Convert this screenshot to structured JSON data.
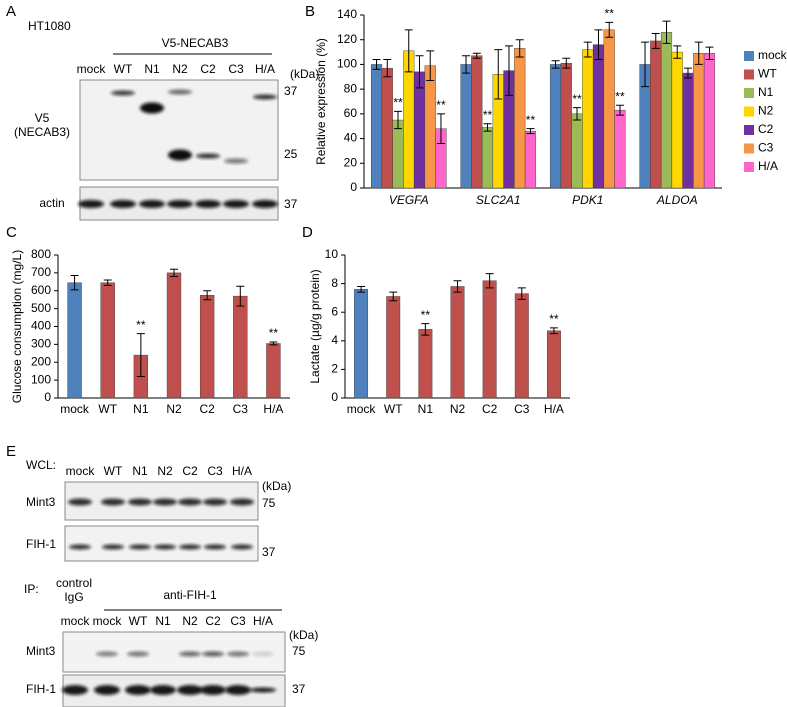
{
  "chart_data": [
    {
      "type": "bar",
      "panel": "B",
      "ylabel": "Relative expression (%)",
      "categories": [
        "VEGFA",
        "SLC2A1",
        "PDK1",
        "ALDOA"
      ],
      "series": [
        {
          "name": "mock",
          "color": "#4f81bd",
          "values": [
            100,
            100,
            100,
            100
          ],
          "errors": [
            4,
            7,
            3,
            18
          ],
          "significance": [
            null,
            null,
            null,
            null
          ]
        },
        {
          "name": "WT",
          "color": "#c0504d",
          "values": [
            97,
            107,
            101,
            119
          ],
          "errors": [
            7,
            2,
            4,
            6
          ],
          "significance": [
            null,
            null,
            null,
            null
          ]
        },
        {
          "name": "N1",
          "color": "#9bbb59",
          "values": [
            55,
            49,
            60,
            126
          ],
          "errors": [
            7,
            3,
            5,
            9
          ],
          "significance": [
            "**",
            "**",
            "**",
            null
          ]
        },
        {
          "name": "N2",
          "color": "#ffd700",
          "values": [
            111,
            92,
            112,
            110
          ],
          "errors": [
            17,
            20,
            6,
            5
          ],
          "significance": [
            null,
            null,
            null,
            null
          ]
        },
        {
          "name": "C2",
          "color": "#7030a0",
          "values": [
            94,
            95,
            116,
            93
          ],
          "errors": [
            13,
            20,
            12,
            4
          ],
          "significance": [
            null,
            null,
            null,
            null
          ]
        },
        {
          "name": "C3",
          "color": "#f79646",
          "values": [
            99,
            113,
            128,
            109
          ],
          "errors": [
            12,
            7,
            6,
            9
          ],
          "significance": [
            null,
            null,
            "**",
            null
          ]
        },
        {
          "name": "H/A",
          "color": "#ff66cc",
          "values": [
            48,
            46,
            63,
            109
          ],
          "errors": [
            12,
            2,
            4,
            5
          ],
          "significance": [
            "**",
            "**",
            "**",
            null
          ]
        }
      ],
      "ylim": [
        0,
        140
      ],
      "yticks": [
        0,
        20,
        40,
        60,
        80,
        100,
        120,
        140
      ],
      "legend": "right"
    },
    {
      "type": "bar",
      "panel": "C",
      "ylabel": "Glucose consumption (mg/L)",
      "categories": [
        "mock",
        "WT",
        "N1",
        "N2",
        "C2",
        "C3",
        "H/A"
      ],
      "values": [
        645,
        645,
        240,
        700,
        575,
        570,
        305
      ],
      "errors": [
        40,
        15,
        120,
        20,
        25,
        55,
        8
      ],
      "significance": [
        null,
        null,
        "**",
        null,
        null,
        null,
        "**"
      ],
      "colors": [
        "#4f81bd",
        "#c0504d",
        "#c0504d",
        "#c0504d",
        "#c0504d",
        "#c0504d",
        "#c0504d"
      ],
      "ylim": [
        0,
        800
      ],
      "yticks": [
        0,
        100,
        200,
        300,
        400,
        500,
        600,
        700,
        800
      ]
    },
    {
      "type": "bar",
      "panel": "D",
      "ylabel": "Lactate (µg/g protein)",
      "categories": [
        "mock",
        "WT",
        "N1",
        "N2",
        "C2",
        "C3",
        "H/A"
      ],
      "values": [
        7.6,
        7.1,
        4.8,
        7.8,
        8.2,
        7.3,
        4.7
      ],
      "errors": [
        0.2,
        0.3,
        0.4,
        0.4,
        0.5,
        0.4,
        0.2
      ],
      "significance": [
        null,
        null,
        "**",
        null,
        null,
        null,
        "**"
      ],
      "colors": [
        "#4f81bd",
        "#c0504d",
        "#c0504d",
        "#c0504d",
        "#c0504d",
        "#c0504d",
        "#c0504d"
      ],
      "ylim": [
        0,
        10
      ],
      "yticks": [
        0,
        2,
        4,
        6,
        8,
        10
      ]
    }
  ],
  "panel_a": {
    "label": "A",
    "cell_line": "HT1080",
    "construct": "V5-NECAB3",
    "lanes": [
      "mock",
      "WT",
      "N1",
      "N2",
      "C2",
      "C3",
      "H/A"
    ],
    "kda": "(kDa)",
    "blot1_name": [
      "V5",
      "(NECAB3)"
    ],
    "blot1_markers": [
      "37",
      "25"
    ],
    "blot2_name": "actin",
    "blot2_marker": "37"
  },
  "panel_e": {
    "label": "E",
    "wcl": "WCL:",
    "wcl_lanes": [
      "mock",
      "WT",
      "N1",
      "N2",
      "C2",
      "C3",
      "H/A"
    ],
    "kda": "(kDa)",
    "wcl_blots": [
      {
        "name": "Mint3",
        "marker": "75"
      },
      {
        "name": "FIH-1",
        "marker": "37"
      }
    ],
    "ip": "IP:",
    "control": [
      "control",
      "IgG"
    ],
    "antibody": "anti-FIH-1",
    "ip_lanes": [
      "mock",
      "mock",
      "WT",
      "N1",
      "N2",
      "C2",
      "C3",
      "H/A"
    ],
    "ip_kda": "(kDa)",
    "ip_blots": [
      {
        "name": "Mint3",
        "marker": "75"
      },
      {
        "name": "FIH-1",
        "marker": "37"
      }
    ]
  }
}
